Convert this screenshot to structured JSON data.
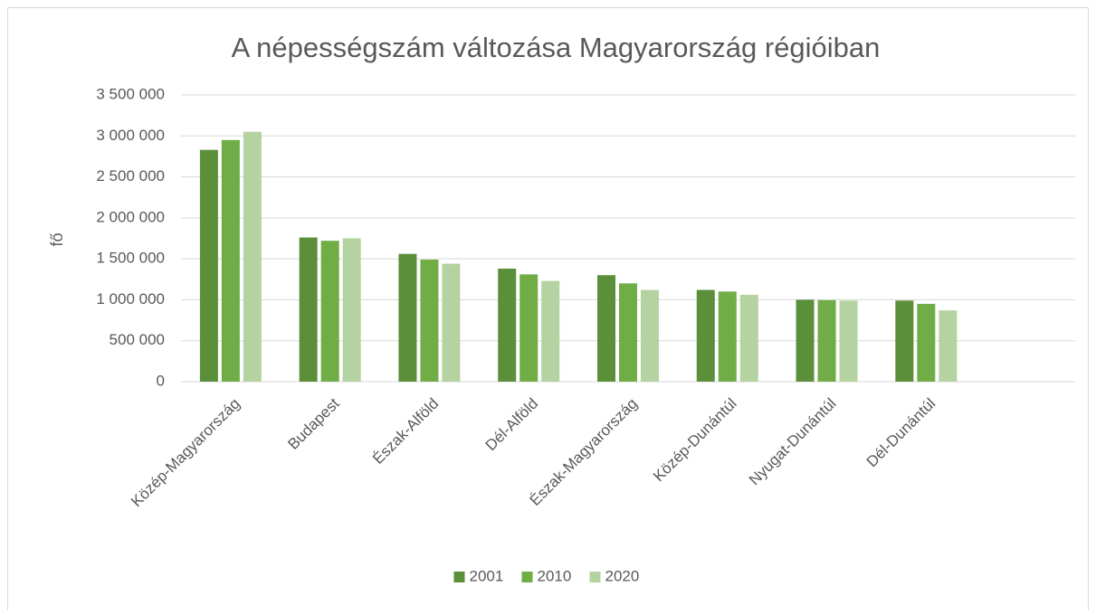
{
  "chart_data": {
    "type": "bar",
    "title": "A népességszám változása Magyarország régióiban",
    "y_label": "fő",
    "categories": [
      "Közép-Magyarország",
      "Budapest",
      "Észak-Alföld",
      "Dél-Alföld",
      "Észak-Magyarország",
      "Közép-Dunántúl",
      "Nyugat-Dunántúl",
      "Dél-Dunántúl",
      null
    ],
    "series": [
      {
        "name": "2001",
        "color": "#5b8f3a",
        "values": [
          2830000,
          1760000,
          1560000,
          1380000,
          1300000,
          1120000,
          1000000,
          990000,
          null
        ]
      },
      {
        "name": "2010",
        "color": "#70ad47",
        "values": [
          2950000,
          1720000,
          1490000,
          1310000,
          1200000,
          1100000,
          995000,
          950000,
          null
        ]
      },
      {
        "name": "2020",
        "color": "#b4d3a0",
        "values": [
          3050000,
          1750000,
          1440000,
          1230000,
          1120000,
          1060000,
          990000,
          870000,
          null
        ]
      }
    ],
    "ylim": [
      0,
      3500000
    ],
    "yticks": [
      0,
      {
        "value": 500000,
        "label": "500 000"
      },
      {
        "value": 1000000,
        "label": "1 000 000"
      },
      {
        "value": 1500000,
        "label": "1 500 000"
      },
      {
        "value": 2000000,
        "label": "2 000 000"
      },
      {
        "value": 2500000,
        "label": "2 500 000"
      },
      {
        "value": 3000000,
        "label": "3 000 000"
      },
      {
        "value": 3500000,
        "label": "3 500 000"
      }
    ],
    "grid": true,
    "legend": "bottom"
  }
}
